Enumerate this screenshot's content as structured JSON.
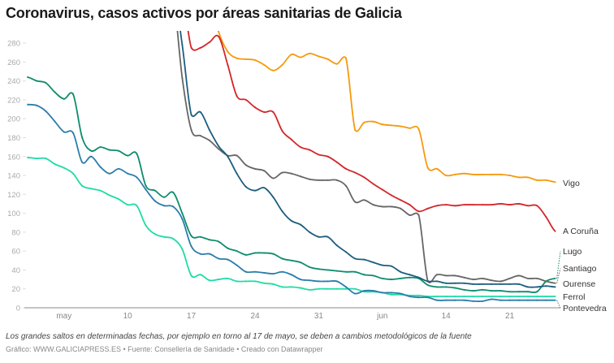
{
  "title": "Coronavirus, casos activos por áreas sanitarias de Galicia",
  "note": "Los grandes saltos en determinadas fechas, por ejemplo en torno al 17 de mayo, se deben a cambios metodológicos de la fuente",
  "source": "Gráfico: WWW.GALICIAPRESS.ES • Fuente: Consellería de Sanidade • Creado con Datawrapper",
  "chart_data": {
    "type": "line",
    "title": "Coronavirus, casos activos por áreas sanitarias de Galicia",
    "xlabel": "",
    "ylabel": "",
    "ylim": [
      0,
      290
    ],
    "yticks": [
      0,
      20,
      40,
      60,
      80,
      100,
      120,
      140,
      160,
      180,
      200,
      220,
      240,
      260,
      280
    ],
    "xticks": [
      {
        "date": "05-03",
        "label": "may"
      },
      {
        "date": "05-10",
        "label": "10"
      },
      {
        "date": "05-17",
        "label": "17"
      },
      {
        "date": "05-24",
        "label": "24"
      },
      {
        "date": "05-31",
        "label": "31"
      },
      {
        "date": "06-07",
        "label": "jun"
      },
      {
        "date": "06-14",
        "label": "14"
      },
      {
        "date": "06-21",
        "label": "21"
      }
    ],
    "grid": false,
    "legend": "direct labels at line ends (right)",
    "x": [
      "04-29",
      "04-30",
      "05-01",
      "05-02",
      "05-03",
      "05-04",
      "05-05",
      "05-06",
      "05-07",
      "05-08",
      "05-09",
      "05-10",
      "05-11",
      "05-12",
      "05-13",
      "05-14",
      "05-15",
      "05-16",
      "05-17",
      "05-18",
      "05-19",
      "05-20",
      "05-21",
      "05-22",
      "05-23",
      "05-24",
      "05-25",
      "05-26",
      "05-27",
      "05-28",
      "05-29",
      "05-30",
      "05-31",
      "06-01",
      "06-02",
      "06-03",
      "06-04",
      "06-05",
      "06-06",
      "06-07",
      "06-08",
      "06-09",
      "06-10",
      "06-11",
      "06-12",
      "06-13",
      "06-14",
      "06-15",
      "06-16",
      "06-17",
      "06-18",
      "06-19",
      "06-20",
      "06-21",
      "06-22",
      "06-23",
      "06-24",
      "06-25",
      "06-26"
    ],
    "series": [
      {
        "name": "Vigo",
        "color": "#f59a0c",
        "values": [
          null,
          null,
          null,
          null,
          null,
          null,
          null,
          null,
          null,
          null,
          null,
          null,
          null,
          null,
          null,
          null,
          null,
          null,
          null,
          null,
          330,
          292,
          271,
          264,
          263,
          262,
          257,
          251,
          257,
          268,
          265,
          269,
          266,
          263,
          258,
          264,
          188,
          196,
          197,
          194,
          193,
          192,
          190,
          189,
          148,
          147,
          140,
          141,
          142,
          141,
          141,
          141,
          141,
          140,
          138,
          138,
          135,
          135,
          133
        ]
      },
      {
        "name": "A Coruña",
        "color": "#d3262a",
        "values": [
          null,
          null,
          null,
          null,
          null,
          null,
          null,
          null,
          null,
          null,
          null,
          null,
          null,
          null,
          null,
          null,
          null,
          330,
          275,
          275,
          281,
          287,
          257,
          224,
          220,
          212,
          207,
          207,
          187,
          178,
          170,
          167,
          162,
          160,
          154,
          147,
          143,
          138,
          131,
          125,
          119,
          114,
          109,
          102,
          105,
          108,
          109,
          108,
          109,
          109,
          109,
          109,
          110,
          109,
          110,
          108,
          108,
          96,
          81
        ]
      },
      {
        "name": "Lugo",
        "color": "#0e8c6c",
        "values": [
          244,
          240,
          238,
          228,
          221,
          226,
          180,
          166,
          170,
          167,
          166,
          161,
          163,
          129,
          124,
          117,
          122,
          100,
          76,
          75,
          72,
          70,
          63,
          60,
          56,
          58,
          58,
          57,
          52,
          50,
          48,
          43,
          41,
          40,
          39,
          38,
          38,
          35,
          34,
          31,
          30,
          31,
          32,
          31,
          24,
          22,
          22,
          21,
          19,
          18,
          19,
          18,
          18,
          17,
          17,
          17,
          17,
          28,
          31
        ]
      },
      {
        "name": "Santiago",
        "color": "#666666",
        "values": [
          null,
          null,
          null,
          null,
          null,
          null,
          null,
          null,
          null,
          null,
          null,
          null,
          null,
          null,
          null,
          null,
          330,
          243,
          188,
          182,
          177,
          168,
          161,
          161,
          151,
          147,
          145,
          137,
          143,
          142,
          139,
          136,
          135,
          135,
          135,
          129,
          112,
          114,
          109,
          107,
          107,
          105,
          98,
          98,
          28,
          35,
          34,
          34,
          32,
          30,
          31,
          29,
          28,
          31,
          34,
          31,
          31,
          28,
          26
        ]
      },
      {
        "name": "Ourense",
        "color": "#1c5e7e",
        "values": [
          null,
          null,
          null,
          null,
          null,
          null,
          null,
          null,
          null,
          null,
          null,
          null,
          null,
          null,
          null,
          null,
          340,
          278,
          204,
          207,
          188,
          171,
          160,
          142,
          128,
          124,
          127,
          117,
          102,
          92,
          88,
          80,
          75,
          75,
          66,
          59,
          52,
          51,
          48,
          45,
          44,
          38,
          35,
          32,
          28,
          28,
          26,
          26,
          26,
          25,
          25,
          25,
          25,
          25,
          25,
          22,
          22,
          23,
          22
        ]
      },
      {
        "name": "Ferrol",
        "color": "#1fdca4",
        "values": [
          159,
          158,
          158,
          152,
          148,
          142,
          129,
          126,
          124,
          119,
          115,
          109,
          108,
          87,
          78,
          75,
          73,
          62,
          34,
          35,
          29,
          30,
          31,
          28,
          28,
          28,
          26,
          25,
          22,
          22,
          21,
          19,
          20,
          20,
          20,
          20,
          20,
          17,
          17,
          16,
          14,
          14,
          13,
          13,
          12,
          12,
          12,
          12,
          12,
          12,
          12,
          12,
          12,
          12,
          12,
          12,
          12,
          12,
          12
        ]
      },
      {
        "name": "Pontevedra",
        "color": "#2a7dab",
        "values": [
          215,
          214,
          208,
          197,
          186,
          185,
          154,
          160,
          149,
          142,
          147,
          142,
          138,
          125,
          113,
          108,
          107,
          94,
          65,
          57,
          57,
          52,
          51,
          45,
          38,
          38,
          37,
          36,
          38,
          35,
          30,
          29,
          28,
          28,
          28,
          22,
          15,
          18,
          18,
          16,
          16,
          15,
          12,
          11,
          11,
          8,
          8,
          8,
          8,
          7,
          7,
          9,
          8,
          8,
          8,
          8,
          8,
          8,
          8
        ]
      }
    ]
  }
}
